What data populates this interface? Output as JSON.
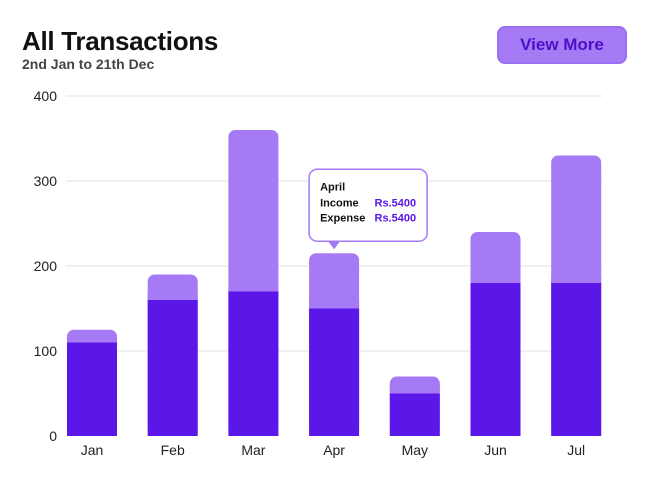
{
  "header": {
    "title": "All Transactions",
    "subtitle": "2nd Jan to 21th Dec",
    "view_more_label": "View More"
  },
  "colors": {
    "income": "#5A17E8",
    "expense": "#A57AF4",
    "grid": "#E2E2E2",
    "tooltip_border": "#A57AF4",
    "tooltip_value": "#5A17E8"
  },
  "chart_data": {
    "type": "bar",
    "stacked": true,
    "categories": [
      "Jan",
      "Feb",
      "Mar",
      "Apr",
      "May",
      "Jun",
      "Jul"
    ],
    "series": [
      {
        "values": [
          110,
          160,
          170,
          150,
          50,
          180,
          180
        ]
      },
      {
        "values": [
          15,
          30,
          190,
          65,
          20,
          60,
          150
        ]
      }
    ],
    "ylim": [
      0,
      400
    ],
    "yticks": [
      0,
      100,
      200,
      300,
      400
    ],
    "grid": true,
    "tooltip": {
      "category": "Apr",
      "title": "April",
      "rows": [
        {
          "label": "Income",
          "value": "Rs.5400"
        },
        {
          "label": "Expense",
          "value": "Rs.5400"
        }
      ]
    }
  }
}
